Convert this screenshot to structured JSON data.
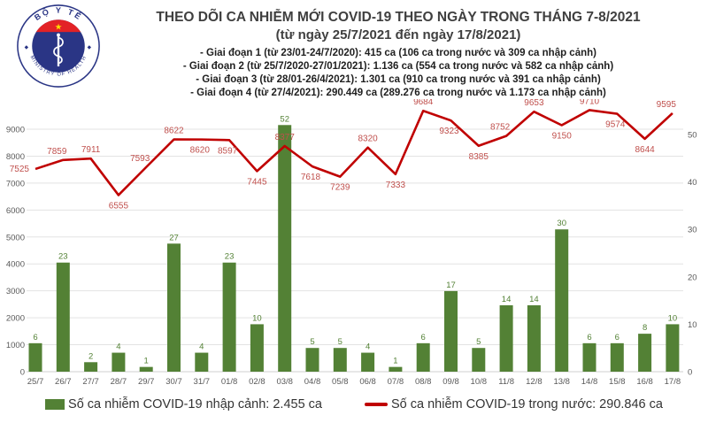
{
  "logo": {
    "top_text": "BỘ Y TẾ",
    "bottom_text": "MINISTRY OF HEALTH"
  },
  "header": {
    "title": "THEO DÕI CA NHIỄM MỚI COVID-19 THEO NGÀY TRONG THÁNG 7-8/2021",
    "subtitle": "(từ ngày 25/7/2021 đến ngày 17/8/2021)",
    "phases": [
      "- Giai đoạn 1 (từ 23/01-24/7/2020): 415 ca (106 ca trong nước và 309 ca nhập cảnh)",
      "- Giai đoạn 2 (từ 25/7/2020-27/01/2021): 1.136 ca (554 ca trong nước và 582 ca nhập cảnh)",
      "- Giai đoạn 3 (từ 28/01-26/4/2021): 1.301 ca (910 ca trong nước và 391 ca nhập cảnh)",
      "- Giai đoạn 4 (từ 27/4/2021): 290.449 ca (289.276 ca trong nước và 1.173 ca nhập cảnh)"
    ]
  },
  "chart_data": {
    "type": "bar+line combo",
    "categories": [
      "25/7",
      "26/7",
      "27/7",
      "28/7",
      "29/7",
      "30/7",
      "31/7",
      "01/8",
      "02/8",
      "03/8",
      "04/8",
      "05/8",
      "06/8",
      "07/8",
      "08/8",
      "09/8",
      "10/8",
      "11/8",
      "12/8",
      "13/8",
      "14/8",
      "15/8",
      "16/8",
      "17/8"
    ],
    "series": [
      {
        "name": "Số ca nhiễm COVID-19 nhập cảnh",
        "type": "bar",
        "axis": "right",
        "values": [
          6,
          23,
          2,
          4,
          1,
          27,
          4,
          23,
          10,
          52,
          5,
          5,
          4,
          1,
          6,
          17,
          5,
          14,
          14,
          30,
          6,
          6,
          8,
          10
        ]
      },
      {
        "name": "Số ca nhiễm COVID-19 trong nước",
        "type": "line",
        "axis": "left",
        "values": [
          7525,
          7859,
          7911,
          6555,
          7593,
          8622,
          8620,
          8597,
          7445,
          8377,
          7618,
          7239,
          8320,
          7333,
          9684,
          9323,
          8385,
          8752,
          9653,
          9150,
          9710,
          9574,
          8644,
          9595
        ]
      }
    ],
    "left_axis": {
      "ticks": [
        0,
        1000,
        2000,
        3000,
        4000,
        5000,
        6000,
        7000,
        8000,
        9000
      ],
      "max": 9790
    },
    "right_axis": {
      "ticks": [
        0,
        10,
        20,
        30,
        40,
        50
      ],
      "max": 55.6
    },
    "grid": true,
    "legend_position": "bottom",
    "data_labels": true
  },
  "legend": [
    {
      "label": "Số ca nhiễm COVID-19 nhập cảnh: 2.455 ca",
      "shape": "square"
    },
    {
      "label": "Số ca nhiễm COVID-19 trong nước: 290.846 ca",
      "shape": "line"
    }
  ],
  "colors": {
    "bar_green": "#538135",
    "line_red": "#c00000",
    "line_label_red": "#c0504d",
    "title_text": "#3f3f3f",
    "phase_text": "#1f1f1f",
    "axis_text": "#595959",
    "grid_line": "#e3e3e3",
    "legend_text": "#333333",
    "logo_blue": "#2a3585",
    "logo_red": "#e32226",
    "logo_star_yellow": "#ffde00"
  }
}
